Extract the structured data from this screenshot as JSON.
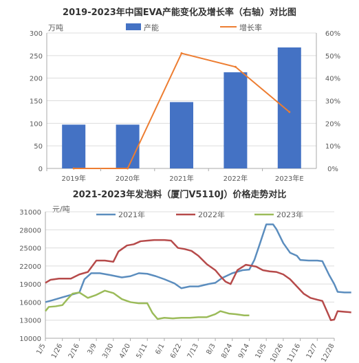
{
  "colors": {
    "bar": "#4472C4",
    "growth": "#ED7D31",
    "y2021": "#5B8DBE",
    "y2022": "#B64A4A",
    "y2023": "#9BBB59",
    "grid": "#dcdcdc",
    "axis": "#aaaaaa",
    "text": "#595959"
  },
  "chart_data": [
    {
      "type": "bar",
      "title": "2019-2023年中国EVA产能变化及增长率（右轴）对比图",
      "ylabel": "万吨",
      "categories": [
        "2019年",
        "2020年",
        "2021年",
        "2022年",
        "2023年E"
      ],
      "series": [
        {
          "name": "产能",
          "type": "bar",
          "axis": "left",
          "values": [
            97,
            97,
            147,
            213,
            268
          ]
        },
        {
          "name": "增长率",
          "type": "line",
          "axis": "right",
          "values": [
            0,
            0,
            51,
            45,
            25
          ]
        }
      ],
      "ylim": [
        0,
        300
      ],
      "yticks": [
        "0",
        "50",
        "100",
        "150",
        "200",
        "250",
        "300"
      ],
      "y2lim": [
        0,
        60
      ],
      "y2ticks": [
        "0%",
        "10%",
        "20%",
        "30%",
        "40%",
        "50%",
        "60%"
      ],
      "legend": "top",
      "grid": true
    },
    {
      "type": "line",
      "title": "2021-2023年发泡料（厦门V5110J）价格走势对比",
      "ylabel": "元/吨",
      "xticks": [
        "1/5",
        "1/26",
        "2/16",
        "3/9",
        "3/30",
        "4/20",
        "5/11",
        "6/1",
        "6/22",
        "7/13",
        "8/3",
        "8/24",
        "9/14",
        "10/5",
        "10/26",
        "11/16",
        "12/7",
        "12/28"
      ],
      "ylim": [
        10000,
        31000
      ],
      "yticks": [
        "10000",
        "13000",
        "16000",
        "19000",
        "22000",
        "25000",
        "28000",
        "31000"
      ],
      "legend": "top",
      "grid": true,
      "series": [
        {
          "name": "2021年",
          "points": [
            [
              0,
              16000
            ],
            [
              0.4,
              16300
            ],
            [
              1,
              16800
            ],
            [
              1.5,
              17200
            ],
            [
              2,
              17600
            ],
            [
              2.3,
              19800
            ],
            [
              2.7,
              20800
            ],
            [
              3.2,
              20800
            ],
            [
              3.8,
              20500
            ],
            [
              4.5,
              20100
            ],
            [
              5,
              20300
            ],
            [
              5.5,
              20800
            ],
            [
              6,
              20700
            ],
            [
              6.5,
              20300
            ],
            [
              7,
              19800
            ],
            [
              7.6,
              19100
            ],
            [
              8,
              18300
            ],
            [
              8.5,
              18600
            ],
            [
              9,
              18600
            ],
            [
              9.6,
              19000
            ],
            [
              10,
              19200
            ],
            [
              10.4,
              20000
            ],
            [
              11,
              20800
            ],
            [
              11.6,
              21300
            ],
            [
              12,
              21400
            ],
            [
              12.3,
              23000
            ],
            [
              12.6,
              25500
            ],
            [
              13,
              28900
            ],
            [
              13.4,
              28900
            ],
            [
              13.6,
              28100
            ],
            [
              14,
              25800
            ],
            [
              14.4,
              24200
            ],
            [
              14.8,
              23700
            ],
            [
              15,
              23000
            ],
            [
              15.5,
              22900
            ],
            [
              16,
              22900
            ],
            [
              16.3,
              22800
            ],
            [
              16.7,
              20500
            ],
            [
              17,
              19000
            ],
            [
              17.2,
              17700
            ],
            [
              17.6,
              17600
            ],
            [
              18,
              17600
            ]
          ]
        },
        {
          "name": "2022年",
          "points": [
            [
              0,
              19200
            ],
            [
              0.3,
              19700
            ],
            [
              0.8,
              19900
            ],
            [
              1.5,
              19900
            ],
            [
              2,
              20600
            ],
            [
              2.5,
              21000
            ],
            [
              3,
              22900
            ],
            [
              3.5,
              22900
            ],
            [
              4,
              22700
            ],
            [
              4.3,
              24400
            ],
            [
              4.8,
              25400
            ],
            [
              5.2,
              25600
            ],
            [
              5.6,
              26100
            ],
            [
              6,
              26200
            ],
            [
              6.4,
              26300
            ],
            [
              7,
              26300
            ],
            [
              7.4,
              26200
            ],
            [
              7.8,
              25000
            ],
            [
              8.2,
              24800
            ],
            [
              8.6,
              24500
            ],
            [
              9,
              23700
            ],
            [
              9.5,
              22300
            ],
            [
              10,
              21300
            ],
            [
              10.3,
              20300
            ],
            [
              10.6,
              19400
            ],
            [
              10.9,
              19000
            ],
            [
              11.3,
              21300
            ],
            [
              11.8,
              22200
            ],
            [
              12.4,
              21900
            ],
            [
              12.8,
              21300
            ],
            [
              13.2,
              21100
            ],
            [
              13.6,
              21000
            ],
            [
              14,
              20600
            ],
            [
              14.4,
              19800
            ],
            [
              14.8,
              18600
            ],
            [
              15.2,
              17400
            ],
            [
              15.6,
              16700
            ],
            [
              16,
              16400
            ],
            [
              16.3,
              16200
            ],
            [
              16.6,
              14300
            ],
            [
              16.8,
              13000
            ],
            [
              17,
              13100
            ],
            [
              17.2,
              14500
            ],
            [
              17.6,
              14400
            ],
            [
              18,
              14300
            ]
          ]
        },
        {
          "name": "2023年",
          "points": [
            [
              0,
              14500
            ],
            [
              0.2,
              15200
            ],
            [
              0.6,
              15300
            ],
            [
              1,
              15500
            ],
            [
              1.3,
              16500
            ],
            [
              1.6,
              17400
            ],
            [
              2,
              17600
            ],
            [
              2.5,
              16700
            ],
            [
              3,
              17200
            ],
            [
              3.5,
              17900
            ],
            [
              4,
              17500
            ],
            [
              4.5,
              16500
            ],
            [
              5,
              16000
            ],
            [
              5.5,
              15800
            ],
            [
              6,
              15800
            ],
            [
              6.3,
              14200
            ],
            [
              6.6,
              13200
            ],
            [
              7,
              13400
            ],
            [
              7.5,
              13300
            ],
            [
              8,
              13400
            ],
            [
              8.5,
              13400
            ],
            [
              9,
              13500
            ],
            [
              9.5,
              13500
            ],
            [
              10,
              14000
            ],
            [
              10.3,
              14500
            ],
            [
              10.8,
              14100
            ],
            [
              11.2,
              14000
            ],
            [
              11.7,
              13800
            ],
            [
              12,
              13800
            ]
          ]
        }
      ]
    }
  ]
}
